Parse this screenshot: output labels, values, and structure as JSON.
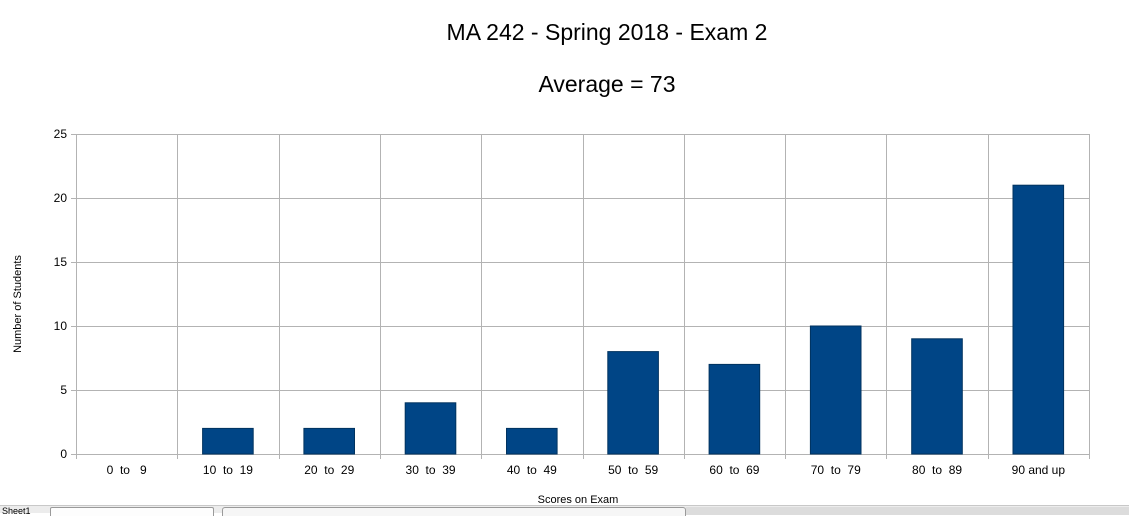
{
  "chart_data": {
    "type": "bar",
    "title": "MA 242 - Spring 2018 - Exam 2",
    "subtitle": "Average = 73",
    "xlabel": "Scores on Exam",
    "ylabel": "Number of Students",
    "categories": [
      "0  to   9",
      "10  to  19",
      "20  to  29",
      "30  to  39",
      "40  to  49",
      "50  to  59",
      "60  to  69",
      "70  to  79",
      "80  to  89",
      "90 and up"
    ],
    "values": [
      0,
      2,
      2,
      4,
      2,
      8,
      7,
      10,
      9,
      21
    ],
    "ylim": [
      0,
      25
    ],
    "yticks": [
      0,
      5,
      10,
      15,
      20,
      25
    ],
    "grid": true,
    "legend": "none",
    "bar_color": "#004586"
  },
  "sheet_tabs": {
    "active": "Sheet1"
  }
}
